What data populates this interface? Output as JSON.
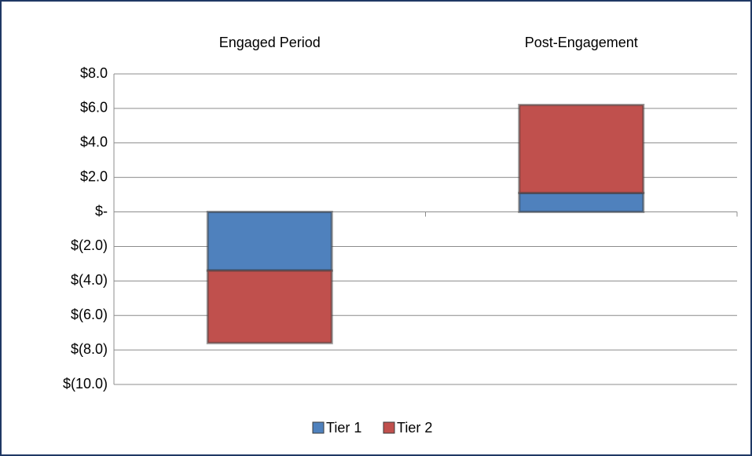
{
  "chart_data": {
    "type": "stacked_bar",
    "categories": [
      "Engaged Period",
      "Post-Engagement"
    ],
    "series": [
      {
        "name": "Tier 1",
        "color": "#4f81bd",
        "values": [
          -3.4,
          1.1
        ]
      },
      {
        "name": "Tier 2",
        "color": "#c0504d",
        "values": [
          -4.2,
          5.1
        ]
      }
    ],
    "ylim": [
      -10,
      8
    ],
    "yticks": [
      {
        "value": 8,
        "label": "$8.0"
      },
      {
        "value": 6,
        "label": "$6.0"
      },
      {
        "value": 4,
        "label": "$4.0"
      },
      {
        "value": 2,
        "label": "$2.0"
      },
      {
        "value": 0,
        "label": "$-"
      },
      {
        "value": -2,
        "label": "$(2.0)"
      },
      {
        "value": -4,
        "label": "$(4.0)"
      },
      {
        "value": -6,
        "label": "$(6.0)"
      },
      {
        "value": -8,
        "label": "$(8.0)"
      },
      {
        "value": -10,
        "label": "$(10.0)"
      }
    ],
    "grid": true,
    "legend": "bottom"
  }
}
